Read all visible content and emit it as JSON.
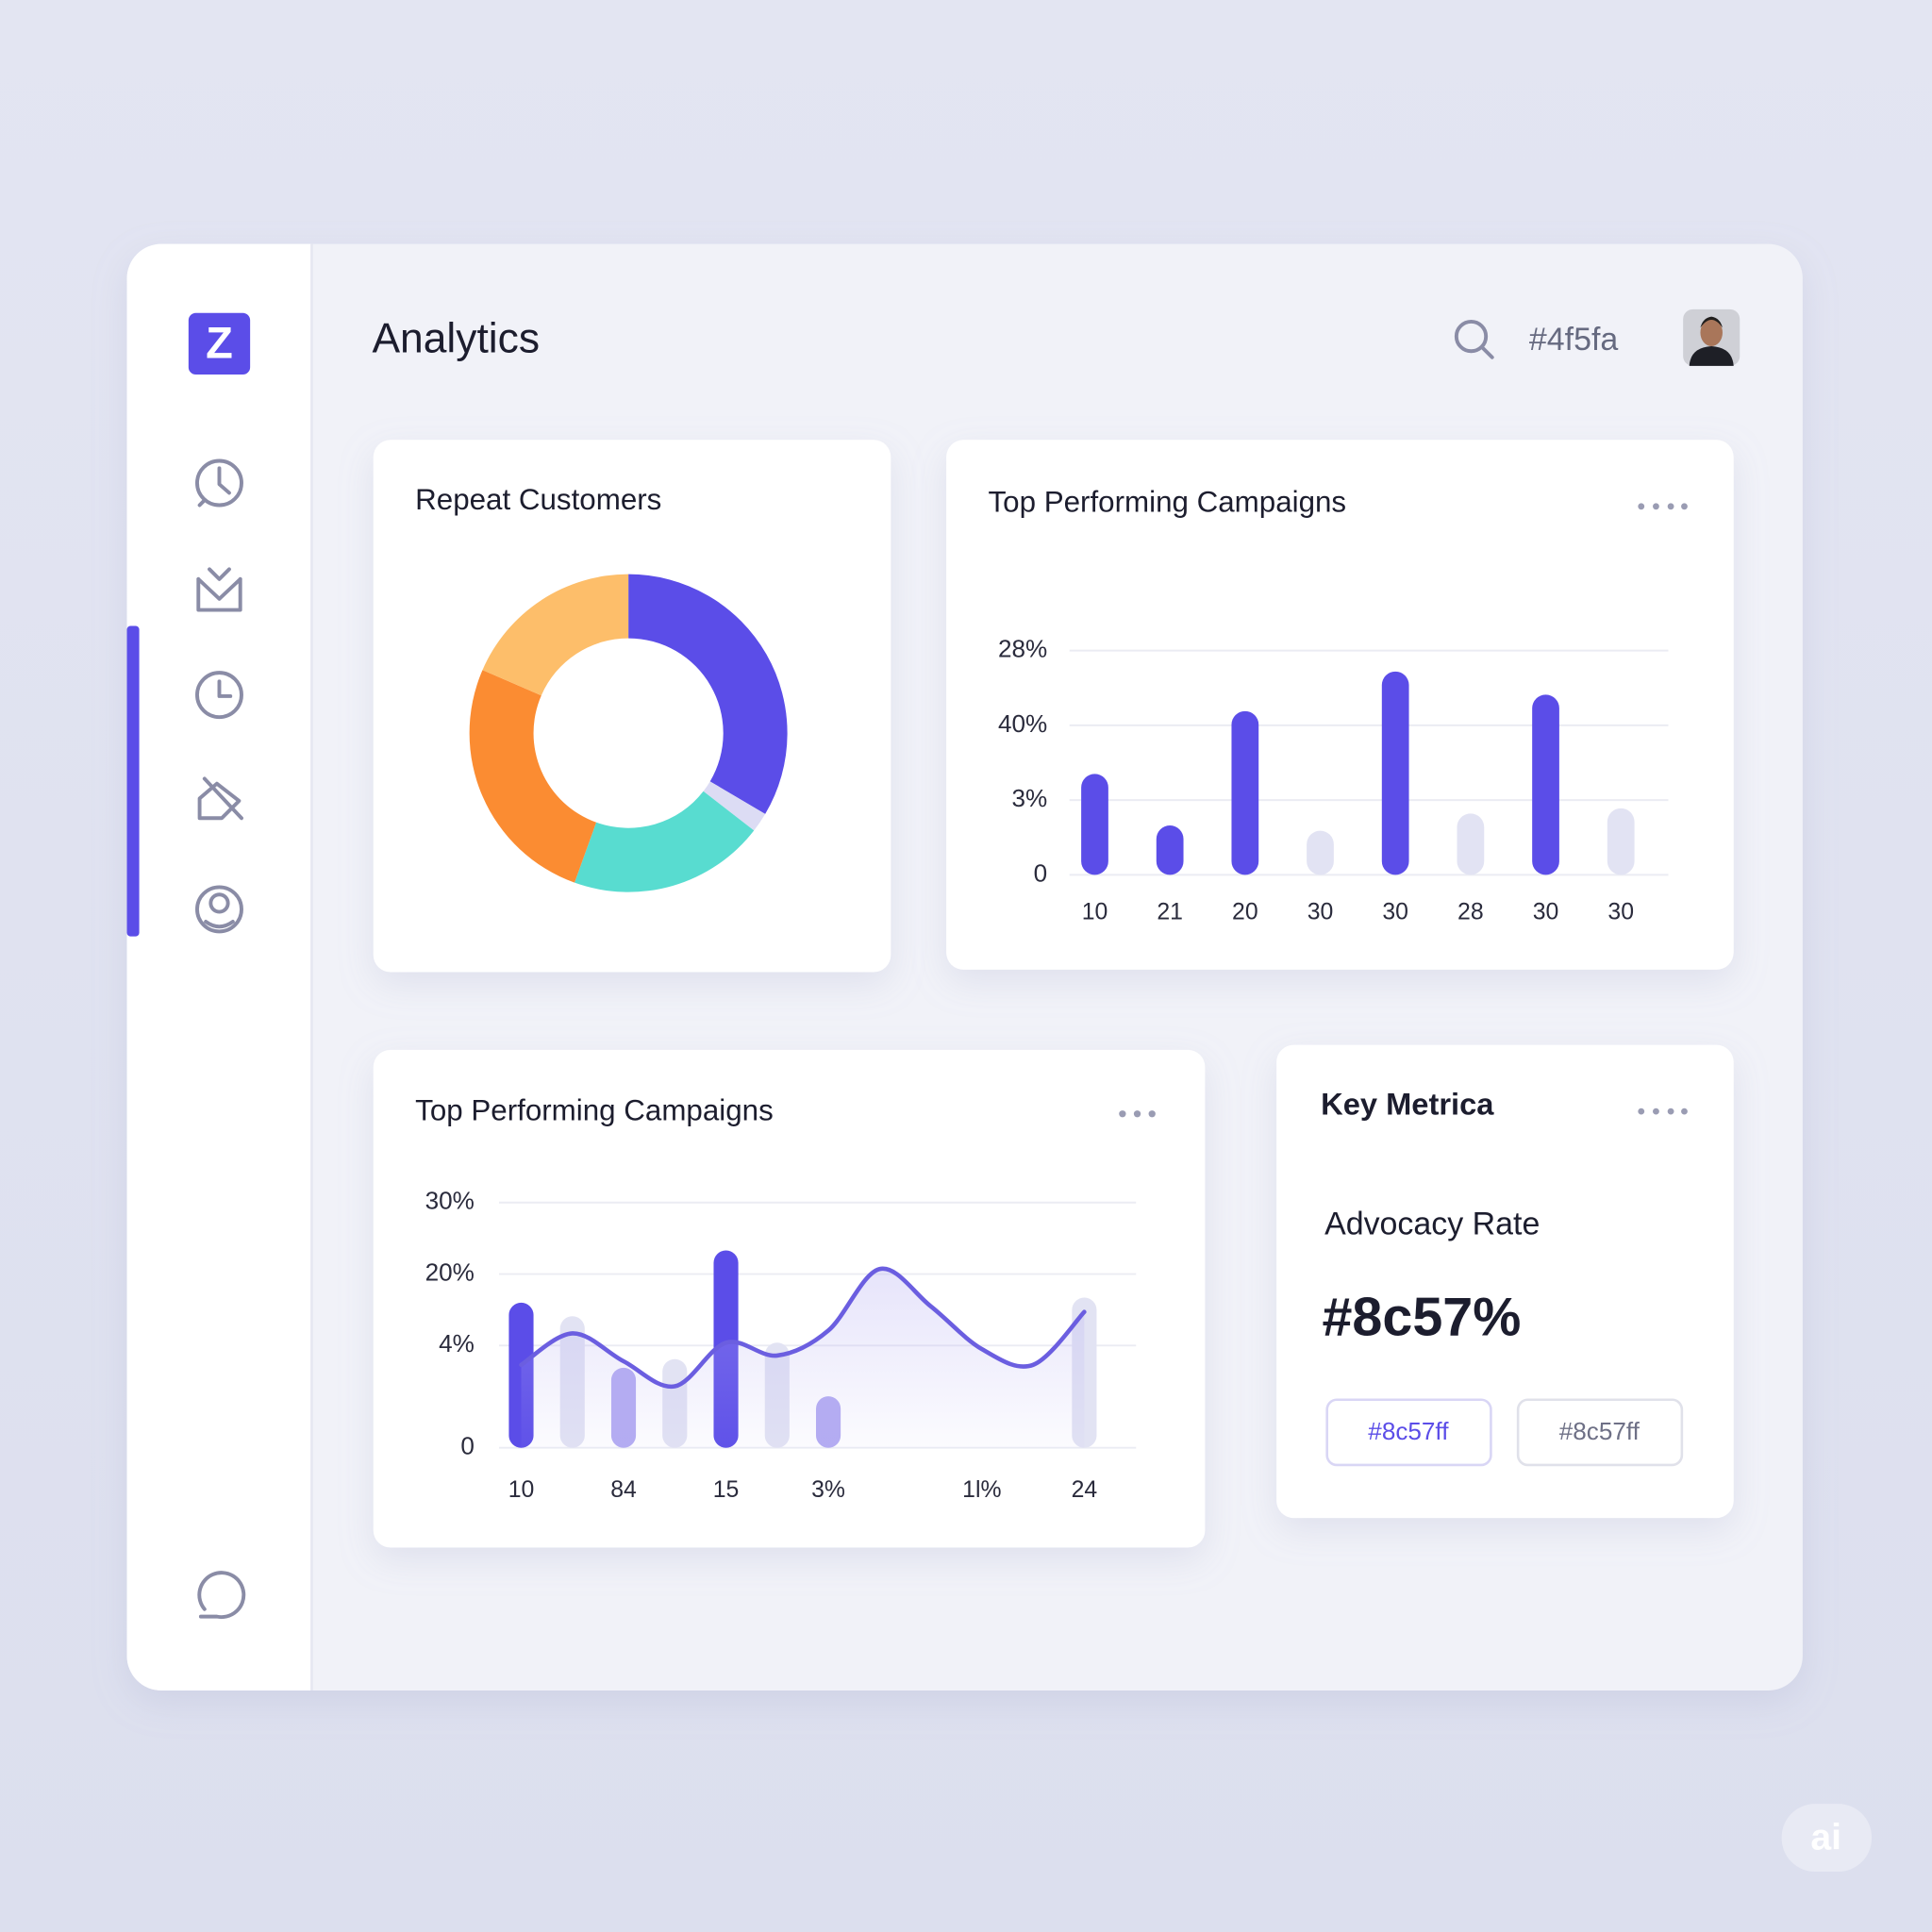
{
  "logo": "Z",
  "header": {
    "title": "Analytics",
    "search_text": "#4f5fa"
  },
  "chart_data": [
    {
      "type": "pie",
      "title": "Repeat Customers",
      "donut": true,
      "values": [
        33.5,
        2,
        20,
        26,
        18.5
      ],
      "colors": [
        "#5b4de8",
        "#dcdcf4",
        "#58dcd0",
        "#fb8c32",
        "#fdbe6a"
      ]
    },
    {
      "type": "bar",
      "title": "Top Performing Campaigns",
      "categories": [
        "10",
        "21",
        "20",
        "30",
        "30",
        "28",
        "30",
        "30"
      ],
      "values": [
        1.35,
        0.66,
        2.19,
        0.59,
        2.72,
        0.82,
        2.41,
        0.89
      ],
      "colors": [
        "#5b4de8",
        "#5b4de8",
        "#5b4de8",
        "#e2e3f3",
        "#5b4de8",
        "#e2e3f3",
        "#5b4de8",
        "#e2e3f3"
      ],
      "ylim": [
        0,
        3
      ],
      "yticks": [
        0,
        {
          "value": 1,
          "label": "3%"
        },
        {
          "value": 2,
          "label": "40%"
        },
        {
          "value": 3,
          "label": "28%"
        }
      ],
      "grid": true
    },
    {
      "type": "combo",
      "title": "Top Performing Campaigns",
      "categories": [
        "10",
        null,
        "84",
        null,
        "15",
        null,
        "3%",
        null,
        null,
        "1l%",
        null,
        "24"
      ],
      "series": [
        {
          "type": "bar",
          "values": [
            2.03,
            1.84,
            1.12,
            1.24,
            2.76,
            1.47,
            0.72,
            null,
            null,
            null,
            null,
            2.1
          ],
          "colors": [
            "#5b4de8",
            "#e2e3f3",
            "#b3abf2",
            "#e2e3f3",
            "#5b4de8",
            "#e2e3f3",
            "#b3abf2",
            null,
            null,
            null,
            null,
            "#e2e3f3"
          ]
        },
        {
          "type": "line",
          "color": "#6b5ee0",
          "values": [
            1.16,
            1.6,
            1.21,
            0.86,
            1.47,
            1.29,
            1.64,
            2.5,
            1.98,
            1.38,
            1.16,
            1.9
          ]
        }
      ],
      "ylim": [
        0,
        3.43
      ],
      "yticks": [
        0,
        {
          "value": 1.43,
          "label": "4%"
        },
        {
          "value": 2.43,
          "label": "20%"
        },
        {
          "value": 3.43,
          "label": "30%"
        }
      ],
      "grid": true
    }
  ],
  "metrics": {
    "title": "Key Metrica",
    "label": "Advocacy Rate",
    "value": "#8c57%",
    "buttons": [
      "#8c57ff",
      "#8c57ff"
    ]
  },
  "watermark": "ai"
}
